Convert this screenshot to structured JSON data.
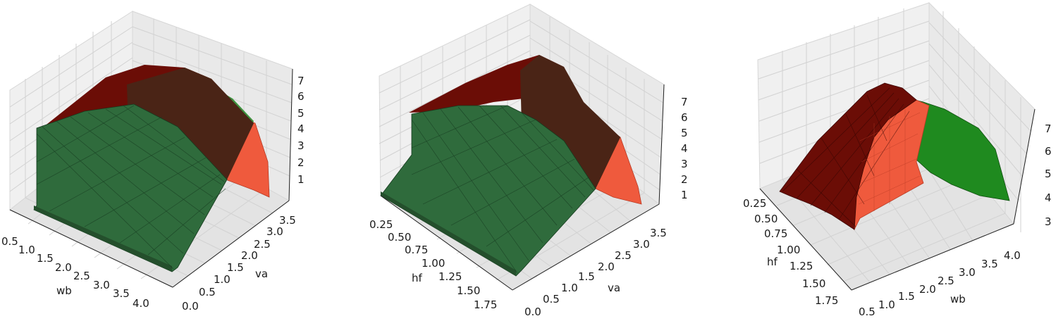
{
  "chart_data": [
    {
      "type": "surface3d",
      "xlabel": "wb",
      "ylabel": "va",
      "zlabel": "",
      "x_ticks": [
        "0.5",
        "1.0",
        "1.5",
        "2.0",
        "2.5",
        "3.0",
        "3.5",
        "4.0"
      ],
      "y_ticks": [
        "0.0",
        "0.5",
        "1.0",
        "1.5",
        "2.0",
        "2.5",
        "3.0",
        "3.5"
      ],
      "z_ticks": [
        "1",
        "2",
        "3",
        "4",
        "5",
        "6",
        "7"
      ],
      "xlim": [
        0.5,
        4.25
      ],
      "ylim": [
        0.0,
        3.75
      ],
      "zlim": [
        0.5,
        7.5
      ],
      "grid": true,
      "colors": {
        "green_surface": "#2f6b3c",
        "dark_red_surface": "#6b0d06",
        "red_surface": "#ef5a3d"
      }
    },
    {
      "type": "surface3d",
      "xlabel": "hf",
      "ylabel": "va",
      "zlabel": "",
      "x_ticks": [
        "0.25",
        "0.50",
        "0.75",
        "1.00",
        "1.25",
        "1.50",
        "1.75"
      ],
      "y_ticks": [
        "0.0",
        "0.5",
        "1.0",
        "1.5",
        "2.0",
        "2.5",
        "3.0",
        "3.5"
      ],
      "z_ticks": [
        "1",
        "2",
        "3",
        "4",
        "5",
        "6",
        "7"
      ],
      "xlim": [
        0.1,
        1.85
      ],
      "ylim": [
        0.0,
        3.75
      ],
      "zlim": [
        0.5,
        7.5
      ],
      "grid": true,
      "colors": {
        "green_surface": "#2f6b3c",
        "dark_red_surface": "#6b0d06",
        "red_surface": "#ef5a3d"
      }
    },
    {
      "type": "surface3d",
      "xlabel": "hf",
      "ylabel": "wb",
      "zlabel": "",
      "x_ticks": [
        "0.25",
        "0.50",
        "0.75",
        "1.00",
        "1.25",
        "1.50",
        "1.75"
      ],
      "y_ticks": [
        "0.5",
        "1.0",
        "1.5",
        "2.0",
        "2.5",
        "3.0",
        "3.5",
        "4.0"
      ],
      "z_ticks": [
        "3",
        "4",
        "5",
        "6",
        "7"
      ],
      "xlim": [
        0.1,
        1.85
      ],
      "ylim": [
        0.5,
        4.25
      ],
      "zlim": [
        2.8,
        7.6
      ],
      "grid": true,
      "colors": {
        "green_surface": "#1f8a1f",
        "dark_red_surface": "#6b0d06",
        "red_surface": "#ef5a3d"
      }
    }
  ]
}
